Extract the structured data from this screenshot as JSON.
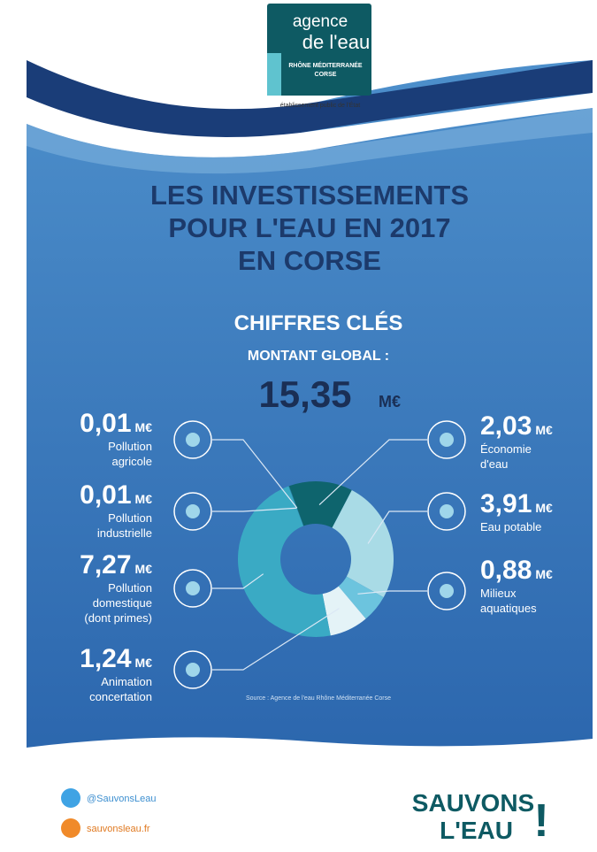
{
  "logo": {
    "line1": "agence",
    "line2": "de l'eau",
    "line3": "RHÔNE MÉDITERRANÉE",
    "line4": "CORSE",
    "tagline": "établissement public de l'État"
  },
  "headline": [
    "LES INVESTISSEMENTS",
    "POUR L'EAU EN 2017",
    "EN CORSE"
  ],
  "chart_data": {
    "type": "pie",
    "donut": true,
    "subtitle": "CHIFFRES CLÉS",
    "total_label": "MONTANT GLOBAL :",
    "total": 15.35,
    "total_value_label": "15,35",
    "unit": "M€",
    "categories": [
      "Économie d'eau",
      "Eau potable",
      "Milieux aquatiques",
      "Animation concertation",
      "Pollution domestique (dont primes)",
      "Pollution industrielle",
      "Pollution agricole"
    ],
    "values": [
      2.03,
      3.91,
      0.88,
      1.24,
      7.27,
      0.01,
      0.01
    ],
    "value_labels": [
      "2,03",
      "3,91",
      "0,88",
      "1,24",
      "7,27",
      "0,01",
      "0,01"
    ],
    "colors": [
      "#0e646d",
      "#a9dbe6",
      "#6cc4de",
      "#e4f3f7",
      "#3aaac4",
      "#2a8fa8",
      "#1d7d8f"
    ],
    "source": "Source : Agence de l'eau Rhône Méditerranée Corse"
  },
  "footer": {
    "twitter": "@SauvonsLeau",
    "website": "sauvonsleau.fr",
    "slogan_line1": "SAUVONS",
    "slogan_line2": "L'EAU",
    "slogan_mark": "!"
  }
}
